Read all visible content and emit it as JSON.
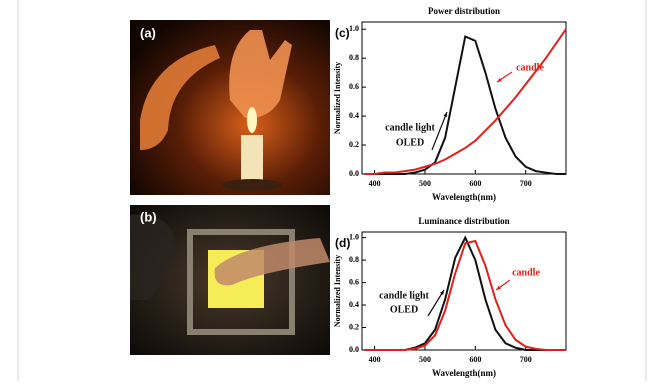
{
  "panel_labels": [
    "(a)",
    "(b)"
  ],
  "chart_data": [
    {
      "type": "line",
      "label": "(c)",
      "title": "Power distribution",
      "x_label": "Wavelength(nm)",
      "y_label": "Normalized Intensity",
      "x": [
        380,
        400,
        420,
        440,
        460,
        480,
        500,
        520,
        540,
        560,
        580,
        600,
        620,
        640,
        660,
        680,
        700,
        720,
        740,
        760,
        780
      ],
      "series": [
        {
          "color": "#111111",
          "values": [
            0,
            0,
            0,
            0,
            0,
            0.01,
            0.03,
            0.08,
            0.25,
            0.6,
            0.95,
            0.92,
            0.7,
            0.45,
            0.25,
            0.12,
            0.05,
            0.02,
            0.01,
            0,
            0
          ]
        },
        {
          "color": "#e0201b",
          "values": [
            0,
            0,
            0.01,
            0.01,
            0.02,
            0.03,
            0.05,
            0.07,
            0.1,
            0.14,
            0.18,
            0.23,
            0.3,
            0.37,
            0.45,
            0.53,
            0.62,
            0.71,
            0.8,
            0.9,
            1.0
          ]
        }
      ],
      "annotations": [
        {
          "text": "candle light",
          "color": "#111111"
        },
        {
          "text": "OLED",
          "color": "#111111"
        },
        {
          "text": "candle",
          "color": "#e0201b"
        }
      ],
      "xlim": [
        375,
        780
      ],
      "xticks": [
        400,
        500,
        600,
        700
      ],
      "ylim": [
        0,
        1.05
      ],
      "yticks": [
        {
          "value": 0,
          "label": "0.0"
        },
        0.2,
        0.4,
        0.6,
        0.8,
        {
          "value": 1,
          "label": "1.0"
        }
      ]
    },
    {
      "type": "line",
      "label": "(d)",
      "title": "Luminance distribution",
      "x_label": "Wavelength(nm)",
      "y_label": "Normalized Intensity",
      "x": [
        380,
        400,
        420,
        440,
        460,
        480,
        500,
        520,
        540,
        560,
        580,
        600,
        620,
        640,
        660,
        680,
        700,
        720,
        740,
        760,
        780
      ],
      "series": [
        {
          "color": "#111111",
          "values": [
            0,
            0,
            0,
            0,
            0,
            0.02,
            0.06,
            0.18,
            0.45,
            0.82,
            1.0,
            0.8,
            0.45,
            0.18,
            0.06,
            0.02,
            0,
            0,
            0,
            0,
            0
          ]
        },
        {
          "color": "#e0201b",
          "values": [
            0,
            0,
            0,
            0,
            0,
            0.01,
            0.04,
            0.13,
            0.35,
            0.68,
            0.95,
            0.97,
            0.75,
            0.45,
            0.22,
            0.09,
            0.03,
            0.01,
            0,
            0,
            0
          ]
        }
      ],
      "annotations": [
        {
          "text": "candle light",
          "color": "#111111"
        },
        {
          "text": "OLED",
          "color": "#111111"
        },
        {
          "text": "candle",
          "color": "#e0201b"
        }
      ],
      "xlim": [
        375,
        780
      ],
      "xticks": [
        400,
        500,
        600,
        700
      ],
      "ylim": [
        0,
        1.05
      ],
      "yticks": [
        {
          "value": 0,
          "label": "0.0"
        },
        0.2,
        0.4,
        0.6,
        0.8,
        {
          "value": 1,
          "label": "1.0"
        }
      ]
    }
  ]
}
